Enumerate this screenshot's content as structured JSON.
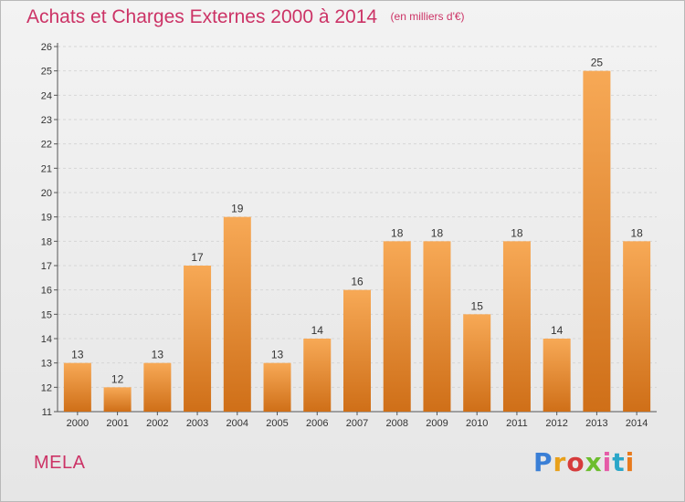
{
  "chart_data": {
    "type": "bar",
    "title": "Achats et Charges Externes 2000 à 2014",
    "subtitle": "(en milliers d'€)",
    "categories": [
      "2000",
      "2001",
      "2002",
      "2003",
      "2004",
      "2005",
      "2006",
      "2007",
      "2008",
      "2009",
      "2010",
      "2011",
      "2012",
      "2013",
      "2014"
    ],
    "values": [
      13,
      12,
      13,
      17,
      19,
      13,
      14,
      16,
      18,
      18,
      15,
      18,
      14,
      25,
      18
    ],
    "ylim": [
      11,
      26
    ],
    "yticks": [
      11,
      12,
      13,
      14,
      15,
      16,
      17,
      18,
      19,
      20,
      21,
      22,
      23,
      24,
      25,
      26
    ],
    "grid": true,
    "data_labels": true
  },
  "footer": {
    "commune": "MELA",
    "brand": [
      "P",
      "r",
      "o",
      "x",
      "i",
      "t",
      "i"
    ]
  },
  "colors": {
    "title": "#cc3366",
    "bar_top": "#f7a956",
    "bar_bottom": "#cf6f18",
    "brand": [
      "#3a7fd6",
      "#e8a01a",
      "#d63b3b",
      "#6cbd2e",
      "#e55ca8",
      "#2aa6c8",
      "#e87a1c"
    ]
  }
}
